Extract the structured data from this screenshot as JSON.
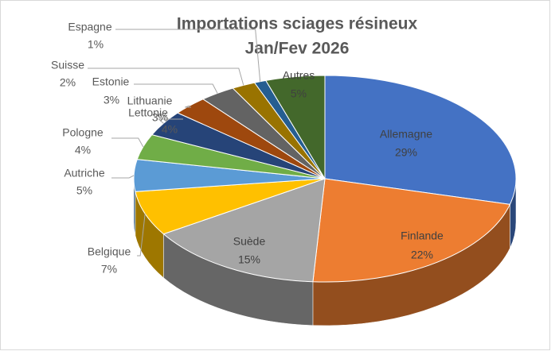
{
  "chart_data": {
    "type": "pie",
    "title": "Importations sciages résineux",
    "subtitle": "Jan/Fev  2026",
    "categories": [
      "Allemagne",
      "Finlande",
      "Suède",
      "Belgique",
      "Autriche",
      "Pologne",
      "Lettonie",
      "Lithuanie",
      "Estonie",
      "Suisse",
      "Espagne",
      "Autres"
    ],
    "values": [
      29,
      22,
      15,
      7,
      5,
      4,
      4,
      3,
      3,
      2,
      1,
      5
    ],
    "value_labels": [
      "29%",
      "22%",
      "15%",
      "7%",
      "5%",
      "4%",
      "4%",
      "3%",
      "3%",
      "2%",
      "1%",
      "5%"
    ],
    "colors": [
      "#4472c4",
      "#ed7d31",
      "#a5a5a5",
      "#ffc000",
      "#5b9bd5",
      "#70ad47",
      "#264478",
      "#9e480e",
      "#636363",
      "#997300",
      "#255e91",
      "#43682b"
    ]
  }
}
